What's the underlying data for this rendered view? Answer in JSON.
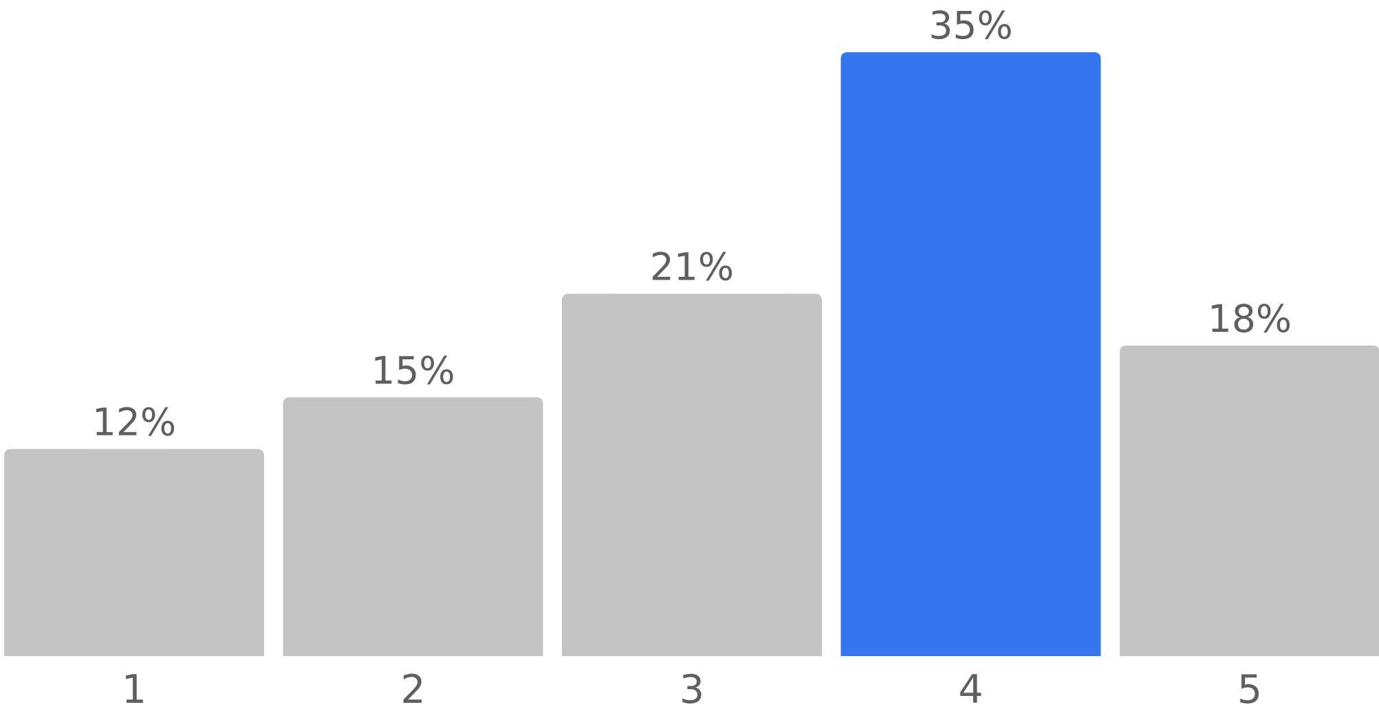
{
  "chart_data": {
    "type": "bar",
    "categories": [
      "1",
      "2",
      "3",
      "4",
      "5"
    ],
    "values": [
      12,
      15,
      21,
      35,
      18
    ],
    "value_labels": [
      "12%",
      "15%",
      "21%",
      "35%",
      "18%"
    ],
    "highlight_index": 3,
    "ylim": [
      0,
      35
    ],
    "grid": false,
    "legend": "none",
    "colors": {
      "bar": "#c4c4c4",
      "highlight": "#3575f0",
      "text": "#5f5f5f"
    }
  }
}
